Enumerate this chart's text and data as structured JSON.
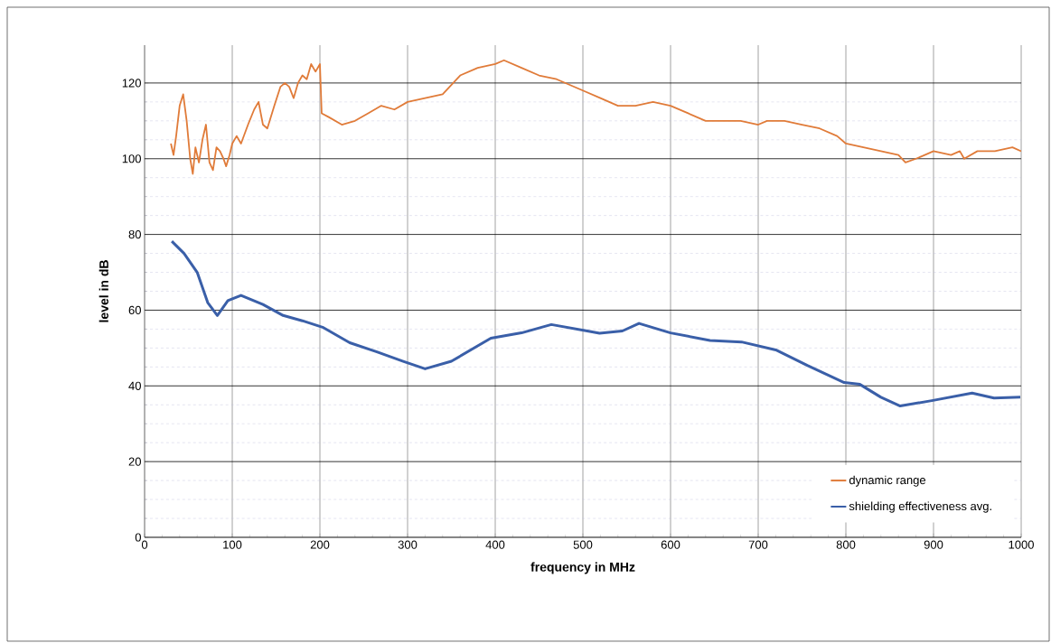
{
  "chart_data": {
    "type": "line",
    "xlabel": "frequency in MHz",
    "ylabel": "level in dB",
    "xlim": [
      0,
      1000
    ],
    "ylim": [
      0,
      130
    ],
    "xticks": [
      0,
      100,
      200,
      300,
      400,
      500,
      600,
      700,
      800,
      900,
      1000
    ],
    "yticks": [
      0,
      20,
      40,
      60,
      80,
      100,
      120
    ],
    "grid": true,
    "legend": "bottom right",
    "marker": "none",
    "line_style": "solid",
    "series": [
      {
        "name": "dynamic range",
        "color": "#e07b39",
        "x": [
          30,
          33,
          36,
          40,
          44,
          48,
          52,
          55,
          58,
          62,
          66,
          70,
          74,
          78,
          82,
          86,
          90,
          93,
          97,
          100,
          105,
          110,
          118,
          125,
          130,
          135,
          140,
          148,
          155,
          160,
          165,
          170,
          175,
          180,
          185,
          190,
          195,
          200,
          202,
          210,
          225,
          240,
          255,
          270,
          285,
          300,
          320,
          340,
          360,
          380,
          400,
          410,
          430,
          450,
          470,
          500,
          520,
          540,
          560,
          580,
          600,
          620,
          640,
          660,
          680,
          700,
          710,
          730,
          750,
          770,
          790,
          800,
          820,
          840,
          860,
          868,
          880,
          890,
          900,
          920,
          930,
          935,
          950,
          970,
          990,
          1000
        ],
        "values": [
          104,
          101,
          106,
          114,
          117,
          110,
          100,
          96,
          103,
          99,
          105,
          109,
          99,
          97,
          103,
          102,
          100,
          98,
          101,
          104,
          106,
          104,
          109,
          113,
          115,
          109,
          108,
          114,
          119,
          120,
          119,
          116,
          120,
          122,
          121,
          125,
          123,
          125,
          112,
          111,
          109,
          110,
          112,
          114,
          113,
          115,
          116,
          117,
          122,
          124,
          125,
          126,
          124,
          122,
          121,
          118,
          116,
          114,
          114,
          115,
          114,
          112,
          110,
          110,
          110,
          109,
          110,
          110,
          109,
          108,
          106,
          104,
          103,
          102,
          101,
          99,
          100,
          101,
          102,
          101,
          102,
          100,
          102,
          102,
          103,
          102
        ]
      },
      {
        "name": "shielding effectiveness avg.",
        "color": "#3a5fa8",
        "x": [
          31,
          45,
          60,
          72,
          83,
          95,
          110,
          135,
          158,
          180,
          203,
          234,
          265,
          295,
          320,
          350,
          395,
          430,
          464,
          505,
          519,
          545,
          564,
          600,
          645,
          681,
          720,
          756,
          798,
          816,
          840,
          862,
          898,
          944,
          969,
          999
        ],
        "values": [
          78.2,
          75,
          70,
          62,
          58.6,
          62.5,
          63.9,
          61.5,
          58.6,
          57.2,
          55.5,
          51.4,
          49,
          46.5,
          44.5,
          46.5,
          52.6,
          54,
          56.2,
          54.5,
          53.9,
          54.5,
          56.5,
          54,
          52,
          51.6,
          49.5,
          45.4,
          40.9,
          40.4,
          37,
          34.7,
          36.1,
          38.1,
          36.8,
          37
        ]
      }
    ]
  }
}
